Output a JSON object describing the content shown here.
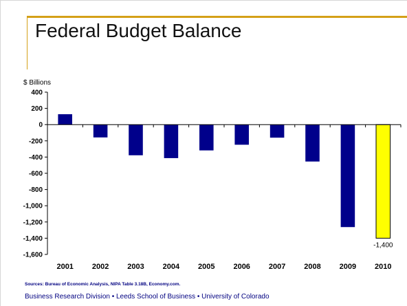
{
  "slide": {
    "title": "Federal Budget Balance",
    "unit_label": "$ Billions",
    "sources": "Sources: Bureau of Economic Analysis, NIPA Table 3.18B, Economy.com.",
    "footer": "Business Research Division • Leeds School of Business • University of Colorado"
  },
  "colors": {
    "accent_frame": "#d4a017",
    "bar_actual": "#00008b",
    "bar_forecast": "#ffff00",
    "text_footer": "#000080"
  },
  "chart_data": {
    "type": "bar",
    "title": "Federal Budget Balance",
    "ylabel": "$ Billions",
    "xlabel": "",
    "categories": [
      "2001",
      "2002",
      "2003",
      "2004",
      "2005",
      "2006",
      "2007",
      "2008",
      "2009",
      "2010"
    ],
    "values": [
      128,
      -158,
      -378,
      -413,
      -318,
      -248,
      -161,
      -455,
      -1263,
      -1400
    ],
    "highlight": [
      false,
      false,
      false,
      false,
      false,
      false,
      false,
      false,
      false,
      true
    ],
    "data_labels": [
      {
        "category": "2010",
        "text": "-1,400"
      }
    ],
    "ylim": [
      -1600,
      400
    ],
    "yticks": [
      {
        "value": 400,
        "label": "400"
      },
      {
        "value": 200,
        "label": "200"
      },
      {
        "value": 0,
        "label": "0"
      },
      {
        "value": -200,
        "label": "-200"
      },
      {
        "value": -400,
        "label": "-400"
      },
      {
        "value": -600,
        "label": "-600"
      },
      {
        "value": -800,
        "label": "-800"
      },
      {
        "value": -1000,
        "label": "-1,000"
      },
      {
        "value": -1200,
        "label": "-1,200"
      },
      {
        "value": -1400,
        "label": "-1,400"
      },
      {
        "value": -1600,
        "label": "-1,600"
      }
    ],
    "grid": false,
    "legend": "none"
  }
}
